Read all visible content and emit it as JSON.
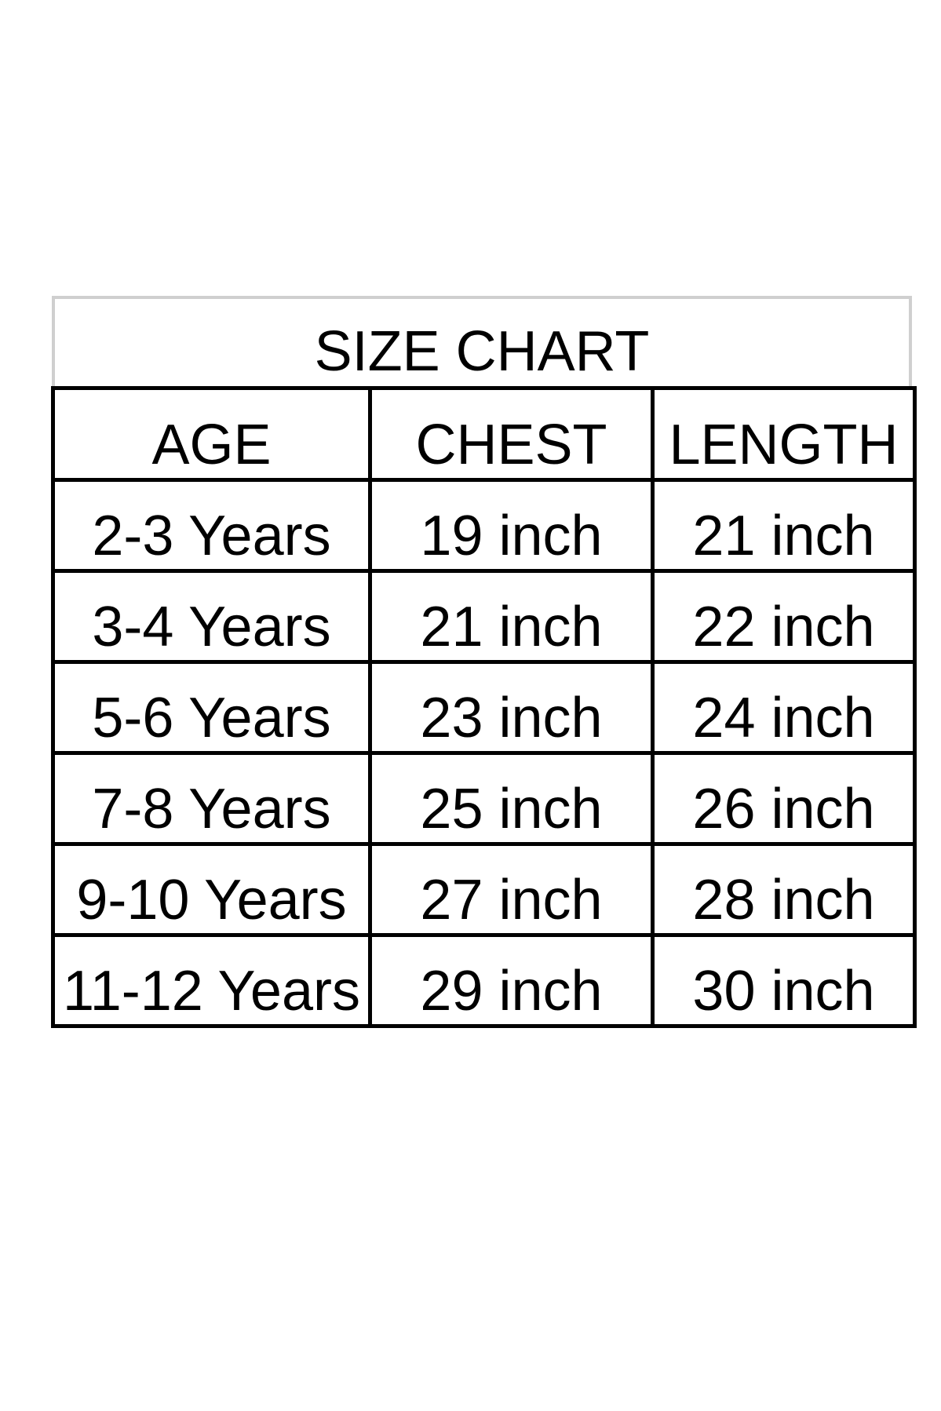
{
  "title": "SIZE CHART",
  "columns": [
    "AGE",
    "CHEST",
    "LENGTH"
  ],
  "rows": [
    [
      "2-3 Years",
      "19 inch",
      "21 inch"
    ],
    [
      "3-4 Years",
      "21 inch",
      "22 inch"
    ],
    [
      "5-6 Years",
      "23 inch",
      "24 inch"
    ],
    [
      "7-8 Years",
      "25 inch",
      "26 inch"
    ],
    [
      "9-10 Years",
      "27 inch",
      "28 inch"
    ],
    [
      "11-12 Years",
      "29 inch",
      "30 inch"
    ]
  ]
}
